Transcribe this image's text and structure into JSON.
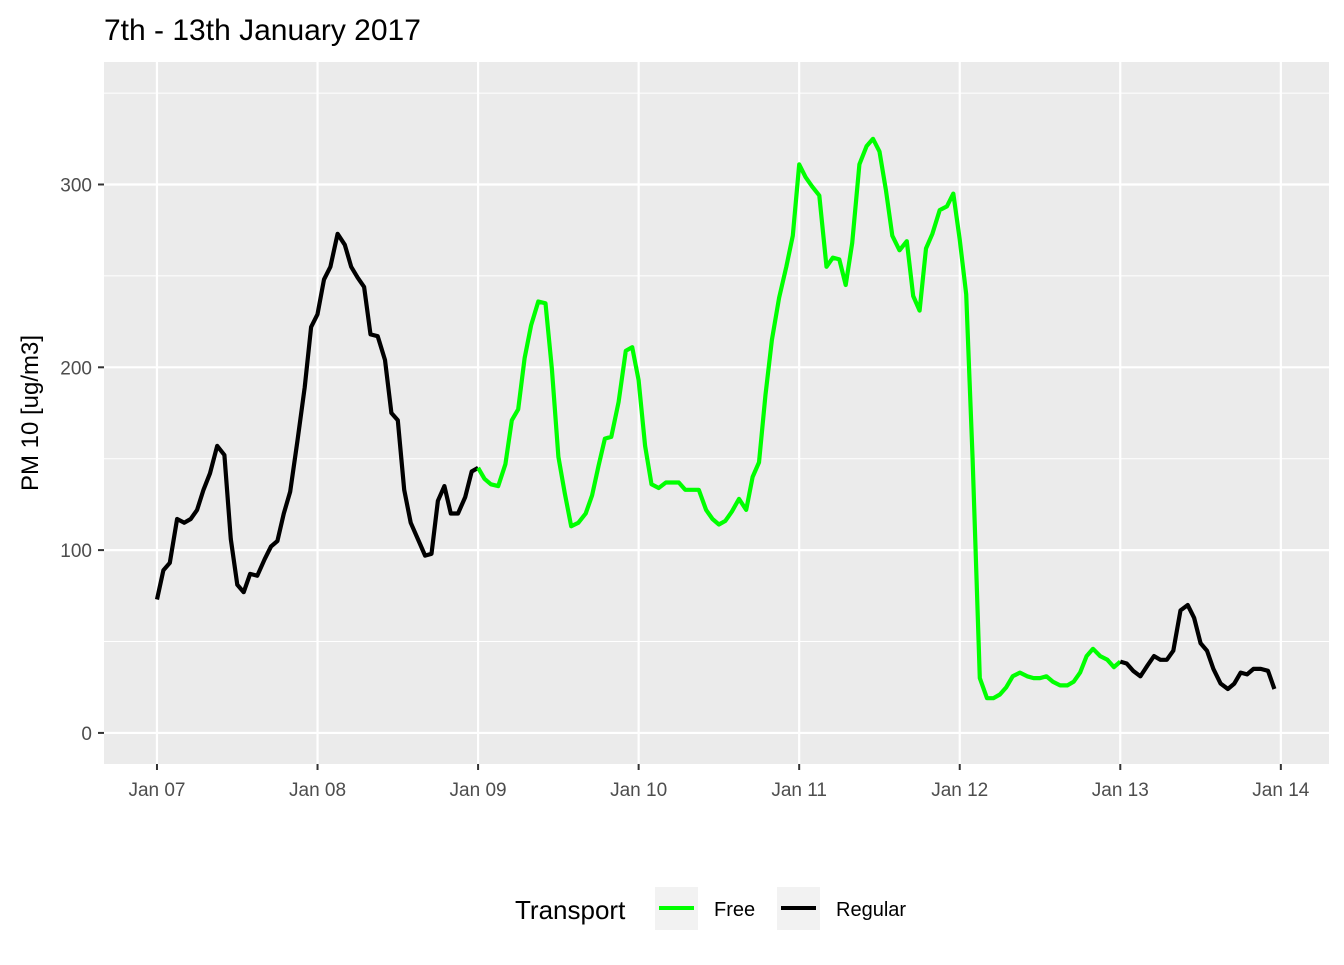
{
  "chart_data": {
    "type": "line",
    "title": "7th - 13th January 2017",
    "xlabel": "",
    "ylabel": "PM 10 [ug/m3]",
    "x_ticks": [
      "Jan 07",
      "Jan 08",
      "Jan 09",
      "Jan 10",
      "Jan 11",
      "Jan 12",
      "Jan 13",
      "Jan 14"
    ],
    "y_ticks": [
      0,
      100,
      200,
      300
    ],
    "ylim": [
      -17,
      367
    ],
    "xlim_days": [
      -0.33,
      7.3
    ],
    "grid": true,
    "legend": {
      "title": "Transport",
      "position": "bottom",
      "entries": [
        {
          "label": "Free",
          "color": "#00ff00"
        },
        {
          "label": "Regular",
          "color": "#000000"
        }
      ]
    },
    "series": [
      {
        "name": "Regular",
        "color": "#000000",
        "points": [
          [
            0.0,
            73
          ],
          [
            0.04,
            89
          ],
          [
            0.08,
            93
          ],
          [
            0.125,
            117
          ],
          [
            0.17,
            115
          ],
          [
            0.21,
            117
          ],
          [
            0.25,
            122
          ],
          [
            0.29,
            133
          ],
          [
            0.33,
            142
          ],
          [
            0.375,
            157
          ],
          [
            0.42,
            152
          ],
          [
            0.46,
            106
          ],
          [
            0.5,
            81
          ],
          [
            0.54,
            77
          ],
          [
            0.58,
            87
          ],
          [
            0.625,
            86
          ],
          [
            0.67,
            95
          ],
          [
            0.71,
            102
          ],
          [
            0.75,
            105
          ],
          [
            0.79,
            120
          ],
          [
            0.83,
            132
          ],
          [
            0.875,
            160
          ],
          [
            0.92,
            189
          ],
          [
            0.96,
            222
          ],
          [
            1.0,
            229
          ],
          [
            1.04,
            248
          ],
          [
            1.08,
            255
          ],
          [
            1.125,
            273
          ],
          [
            1.17,
            267
          ],
          [
            1.21,
            255
          ],
          [
            1.25,
            249
          ],
          [
            1.29,
            244
          ],
          [
            1.33,
            218
          ],
          [
            1.375,
            217
          ],
          [
            1.42,
            204
          ],
          [
            1.46,
            175
          ],
          [
            1.5,
            171
          ],
          [
            1.54,
            133
          ],
          [
            1.58,
            115
          ],
          [
            1.625,
            106
          ],
          [
            1.67,
            97
          ],
          [
            1.71,
            98
          ],
          [
            1.75,
            127
          ],
          [
            1.79,
            135
          ],
          [
            1.83,
            120
          ],
          [
            1.875,
            120
          ],
          [
            1.92,
            129
          ],
          [
            1.96,
            143
          ],
          [
            2.0,
            145
          ]
        ]
      },
      {
        "name": "Free",
        "color": "#00ff00",
        "points": [
          [
            2.0,
            145
          ],
          [
            2.04,
            139
          ],
          [
            2.08,
            136
          ],
          [
            2.125,
            135
          ],
          [
            2.17,
            147
          ],
          [
            2.21,
            171
          ],
          [
            2.25,
            177
          ],
          [
            2.29,
            205
          ],
          [
            2.33,
            223
          ],
          [
            2.375,
            236
          ],
          [
            2.42,
            235
          ],
          [
            2.46,
            199
          ],
          [
            2.5,
            151
          ],
          [
            2.54,
            131
          ],
          [
            2.58,
            113
          ],
          [
            2.625,
            115
          ],
          [
            2.67,
            120
          ],
          [
            2.71,
            130
          ],
          [
            2.75,
            146
          ],
          [
            2.79,
            161
          ],
          [
            2.83,
            162
          ],
          [
            2.875,
            181
          ],
          [
            2.92,
            209
          ],
          [
            2.96,
            211
          ],
          [
            3.0,
            193
          ],
          [
            3.04,
            157
          ],
          [
            3.08,
            136
          ],
          [
            3.125,
            134
          ],
          [
            3.17,
            137
          ],
          [
            3.21,
            137
          ],
          [
            3.25,
            137
          ],
          [
            3.29,
            133
          ],
          [
            3.33,
            133
          ],
          [
            3.375,
            133
          ],
          [
            3.42,
            122
          ],
          [
            3.46,
            117
          ],
          [
            3.5,
            114
          ],
          [
            3.54,
            116
          ],
          [
            3.58,
            121
          ],
          [
            3.625,
            128
          ],
          [
            3.67,
            122
          ],
          [
            3.71,
            140
          ],
          [
            3.75,
            148
          ],
          [
            3.79,
            185
          ],
          [
            3.83,
            215
          ],
          [
            3.875,
            238
          ],
          [
            3.92,
            255
          ],
          [
            3.96,
            272
          ],
          [
            4.0,
            311
          ],
          [
            4.04,
            304
          ],
          [
            4.08,
            299
          ],
          [
            4.125,
            294
          ],
          [
            4.17,
            255
          ],
          [
            4.21,
            260
          ],
          [
            4.25,
            259
          ],
          [
            4.29,
            245
          ],
          [
            4.33,
            268
          ],
          [
            4.375,
            311
          ],
          [
            4.42,
            321
          ],
          [
            4.46,
            325
          ],
          [
            4.5,
            318
          ],
          [
            4.54,
            297
          ],
          [
            4.58,
            272
          ],
          [
            4.625,
            264
          ],
          [
            4.67,
            269
          ],
          [
            4.71,
            239
          ],
          [
            4.75,
            231
          ],
          [
            4.79,
            265
          ],
          [
            4.83,
            273
          ],
          [
            4.875,
            286
          ],
          [
            4.92,
            288
          ],
          [
            4.96,
            295
          ],
          [
            5.0,
            270
          ],
          [
            5.04,
            240
          ],
          [
            5.08,
            150
          ],
          [
            5.125,
            30
          ],
          [
            5.17,
            19
          ],
          [
            5.21,
            19
          ],
          [
            5.25,
            21
          ],
          [
            5.29,
            25
          ],
          [
            5.33,
            31
          ],
          [
            5.375,
            33
          ],
          [
            5.42,
            31
          ],
          [
            5.46,
            30
          ],
          [
            5.5,
            30
          ],
          [
            5.54,
            31
          ],
          [
            5.58,
            28
          ],
          [
            5.625,
            26
          ],
          [
            5.67,
            26
          ],
          [
            5.71,
            28
          ],
          [
            5.75,
            33
          ],
          [
            5.79,
            42
          ],
          [
            5.83,
            46
          ],
          [
            5.875,
            42
          ],
          [
            5.92,
            40
          ],
          [
            5.96,
            36
          ],
          [
            6.0,
            39
          ]
        ]
      },
      {
        "name": "Regular",
        "color": "#000000",
        "points": [
          [
            6.0,
            39
          ],
          [
            6.04,
            38
          ],
          [
            6.08,
            34
          ],
          [
            6.125,
            31
          ],
          [
            6.17,
            37
          ],
          [
            6.21,
            42
          ],
          [
            6.25,
            40
          ],
          [
            6.29,
            40
          ],
          [
            6.33,
            45
          ],
          [
            6.375,
            67
          ],
          [
            6.42,
            70
          ],
          [
            6.46,
            63
          ],
          [
            6.5,
            49
          ],
          [
            6.54,
            45
          ],
          [
            6.58,
            35
          ],
          [
            6.625,
            27
          ],
          [
            6.67,
            24
          ],
          [
            6.71,
            27
          ],
          [
            6.75,
            33
          ],
          [
            6.79,
            32
          ],
          [
            6.83,
            35
          ],
          [
            6.875,
            35
          ],
          [
            6.92,
            34
          ],
          [
            6.96,
            24
          ]
        ]
      }
    ]
  }
}
